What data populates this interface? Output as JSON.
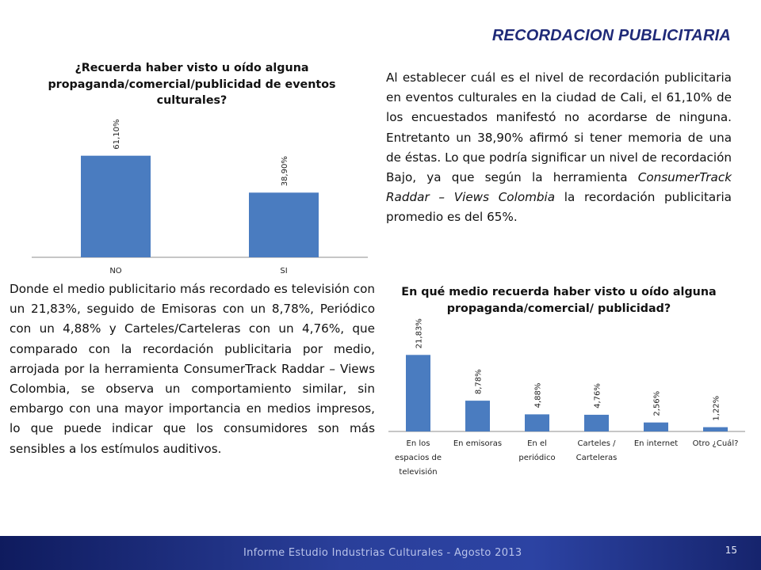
{
  "slide": {
    "title": "RECORDACION PUBLICITARIA"
  },
  "paragraph_right": {
    "part1": "Al establecer cuál es el nivel de recordación publicitaria en eventos culturales en la ciudad de Cali, el 61,10% de los encuestados manifestó no acordarse de ninguna. Entretanto un 38,90% afirmó si tener memoria de una de éstas. Lo que podría significar un nivel de recordación Bajo, ya que según la herramienta ",
    "italic": "ConsumerTrack Raddar – Views Colombia",
    "part2": " la recordación publicitaria promedio es del 65%."
  },
  "paragraph_left": "Donde el medio publicitario más recordado es televisión con un 21,83%, seguido de Emisoras con un 8,78%, Periódico con un 4,88% y Carteles/Carteleras con un 4,76%, que comparado con la recordación publicitaria por medio, arrojada por la herramienta ConsumerTrack Raddar – Views Colombia, se observa un comportamiento similar, sin embargo con una mayor importancia en medios impresos, lo que puede indicar que los consumidores son más sensibles a los estímulos auditivos.",
  "chart_data": [
    {
      "type": "bar",
      "title": "¿Recuerda haber visto u oído alguna propaganda/comercial/publicidad de eventos culturales?",
      "categories": [
        "NO",
        "SI"
      ],
      "values": [
        61.1,
        38.9
      ],
      "data_labels": [
        "61,10%",
        "38,90%"
      ],
      "ylim": [
        0,
        100
      ],
      "bar_color": "#4a7cc0",
      "grid": false
    },
    {
      "type": "bar",
      "title": "En qué medio recuerda haber visto u oído alguna propaganda/comercial/ publicidad?",
      "categories": [
        [
          "En los",
          "espacios de",
          "televisión"
        ],
        [
          "En emisoras"
        ],
        [
          "En el",
          "periódico"
        ],
        [
          "Carteles /",
          "Carteleras"
        ],
        [
          "En internet"
        ],
        [
          "Otro ¿Cuál?"
        ]
      ],
      "values": [
        21.83,
        8.78,
        4.88,
        4.76,
        2.56,
        1.22
      ],
      "data_labels": [
        "21,83%",
        "8,78%",
        "4,88%",
        "4,76%",
        "2,56%",
        "1,22%"
      ],
      "ylim": [
        0,
        35
      ],
      "bar_color": "#4a7cc0",
      "grid": false
    }
  ],
  "footer": {
    "text": "Informe Estudio Industrias Culturales  -  Agosto 2013",
    "page_number": "15"
  }
}
